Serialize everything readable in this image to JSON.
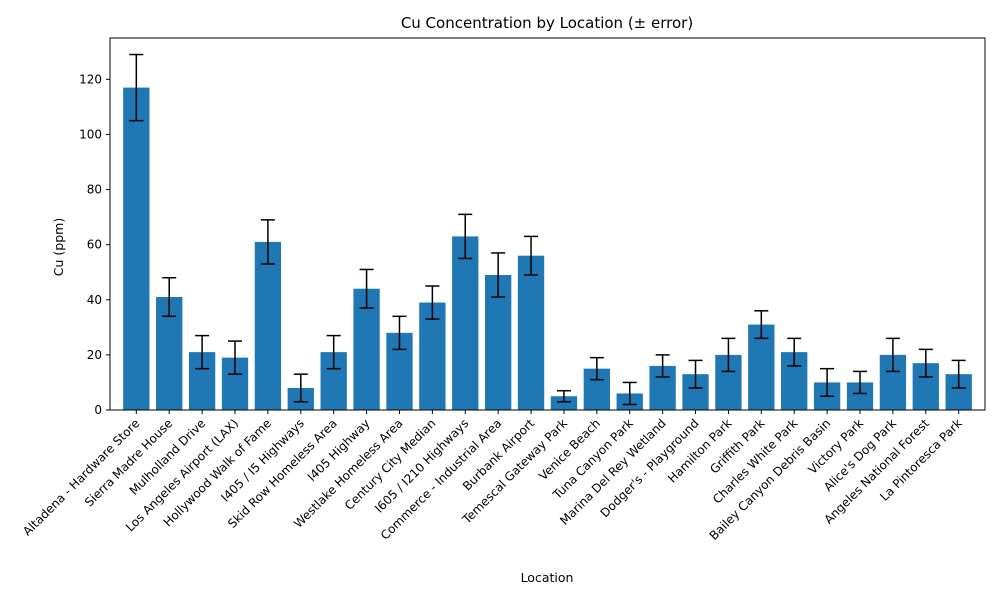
{
  "chart_data": {
    "type": "bar",
    "title": "Cu Concentration by Location (± error)",
    "xlabel": "Location",
    "ylabel": "Cu (ppm)",
    "ylim": [
      0,
      135
    ],
    "yticks": [
      0,
      20,
      40,
      60,
      80,
      100,
      120
    ],
    "grid": false,
    "bar_color": "#1f77b4",
    "error_color": "#000000",
    "categories": [
      "Altadena - Hardware Store",
      "Sierra Madre House",
      "Mulholland Drive",
      "Los Angeles Airport (LAX)",
      "Hollywood Walk of Fame",
      "I405 / I5 Highways",
      "Skid Row Homeless Area",
      "I405 Highway",
      "Westlake Homeless Area",
      "Century City Median",
      "I605 / I210 Highways",
      "Commerce - Industrial Area",
      "Burbank Airport",
      "Temescal Gateway Park",
      "Venice Beach",
      "Tuna Canyon Park",
      "Marina Del Rey Wetland",
      "Dodger's - Playground",
      "Hamilton Park",
      "Griffith Park",
      "Charles White Park",
      "Bailey Canyon Debris Basin",
      "Victory Park",
      "Alice's Dog Park",
      "Angeles National Forest",
      "La Pintoresca Park"
    ],
    "values": [
      117,
      41,
      21,
      19,
      61,
      8,
      21,
      44,
      28,
      39,
      63,
      49,
      56,
      5,
      15,
      6,
      16,
      13,
      20,
      31,
      21,
      10,
      10,
      20,
      17,
      13
    ],
    "errors": [
      12,
      7,
      6,
      6,
      8,
      5,
      6,
      7,
      6,
      6,
      8,
      8,
      7,
      2,
      4,
      4,
      4,
      5,
      6,
      5,
      5,
      5,
      4,
      6,
      5,
      5
    ]
  }
}
